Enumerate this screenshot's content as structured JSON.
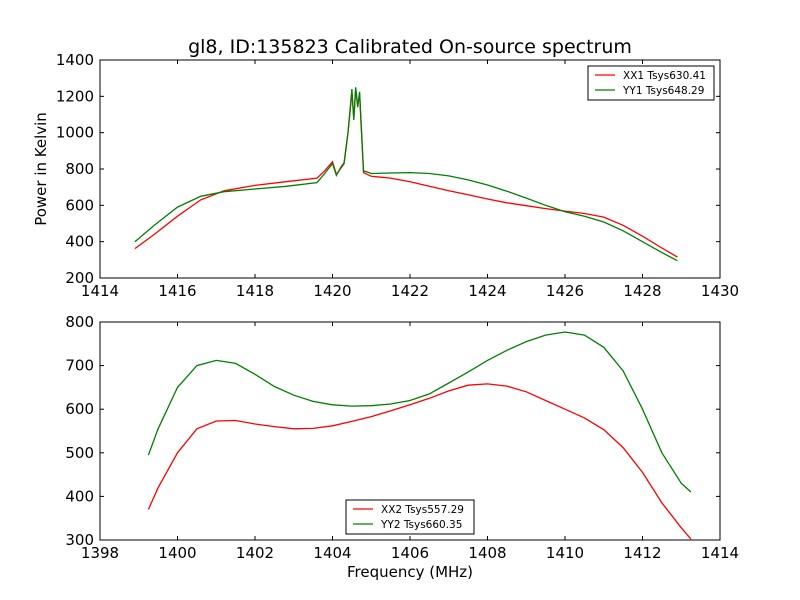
{
  "figure": {
    "title": "gl8, ID:135823 Calibrated On-source spectrum"
  },
  "chart_data": [
    {
      "type": "line",
      "title": "gl8, ID:135823 Calibrated On-source spectrum",
      "xlabel": "",
      "ylabel": "Power in Kelvin",
      "xlim": [
        1414,
        1430
      ],
      "ylim": [
        200,
        1400
      ],
      "xticks": [
        1414,
        1416,
        1418,
        1420,
        1422,
        1424,
        1426,
        1428,
        1430
      ],
      "yticks": [
        200,
        400,
        600,
        800,
        1000,
        1200,
        1400
      ],
      "grid": false,
      "legend_position": "top-right",
      "series": [
        {
          "name": "XX1 Tsys630.41",
          "color": "#ff0000",
          "x": [
            1414.9,
            1415.4,
            1416.0,
            1416.6,
            1417.2,
            1418.0,
            1418.8,
            1419.6,
            1419.8,
            1420.0,
            1420.1,
            1420.2,
            1420.3,
            1420.4,
            1420.5,
            1420.55,
            1420.6,
            1420.65,
            1420.7,
            1420.8,
            1421.0,
            1421.5,
            1422.0,
            1422.5,
            1423.0,
            1423.5,
            1424.0,
            1424.5,
            1425.0,
            1425.5,
            1426.0,
            1426.5,
            1427.0,
            1427.5,
            1428.0,
            1428.5,
            1428.9
          ],
          "values": [
            362,
            440,
            540,
            630,
            680,
            710,
            730,
            750,
            790,
            840,
            770,
            800,
            830,
            1000,
            1220,
            1080,
            1240,
            1150,
            1210,
            780,
            760,
            750,
            730,
            705,
            680,
            658,
            635,
            614,
            598,
            582,
            568,
            555,
            535,
            490,
            430,
            365,
            315
          ]
        },
        {
          "name": "YY1 Tsys648.29",
          "color": "#008000",
          "x": [
            1414.9,
            1415.4,
            1416.0,
            1416.6,
            1417.2,
            1418.0,
            1418.8,
            1419.6,
            1419.8,
            1420.0,
            1420.1,
            1420.2,
            1420.3,
            1420.4,
            1420.5,
            1420.55,
            1420.6,
            1420.65,
            1420.7,
            1420.8,
            1421.0,
            1421.5,
            1422.0,
            1422.5,
            1423.0,
            1423.5,
            1424.0,
            1424.5,
            1425.0,
            1425.5,
            1426.0,
            1426.5,
            1427.0,
            1427.5,
            1428.0,
            1428.5,
            1428.9
          ],
          "values": [
            400,
            490,
            590,
            650,
            675,
            690,
            705,
            725,
            775,
            830,
            765,
            805,
            835,
            1000,
            1240,
            1070,
            1250,
            1140,
            1225,
            790,
            775,
            778,
            780,
            775,
            762,
            740,
            712,
            678,
            640,
            600,
            565,
            540,
            508,
            460,
            400,
            340,
            295
          ]
        }
      ]
    },
    {
      "type": "line",
      "title": "",
      "xlabel": "Frequency (MHz)",
      "ylabel": "",
      "xlim": [
        1398,
        1414
      ],
      "ylim": [
        300,
        800
      ],
      "xticks": [
        1398,
        1400,
        1402,
        1404,
        1406,
        1408,
        1410,
        1412,
        1414
      ],
      "yticks": [
        300,
        400,
        500,
        600,
        700,
        800
      ],
      "grid": false,
      "legend_position": "bottom-center",
      "series": [
        {
          "name": "XX2 Tsys557.29",
          "color": "#ff0000",
          "x": [
            1399.25,
            1399.5,
            1400.0,
            1400.5,
            1401.0,
            1401.5,
            1402.0,
            1402.5,
            1403.0,
            1403.5,
            1404.0,
            1404.5,
            1405.0,
            1405.5,
            1406.0,
            1406.5,
            1407.0,
            1407.5,
            1408.0,
            1408.5,
            1409.0,
            1409.5,
            1410.0,
            1410.5,
            1411.0,
            1411.5,
            1412.0,
            1412.5,
            1413.0,
            1413.25
          ],
          "values": [
            370,
            420,
            500,
            555,
            573,
            574,
            566,
            560,
            555,
            556,
            562,
            572,
            583,
            596,
            610,
            625,
            642,
            655,
            658,
            653,
            640,
            620,
            600,
            580,
            553,
            512,
            455,
            385,
            328,
            302
          ]
        },
        {
          "name": "YY2 Tsys660.35",
          "color": "#008000",
          "x": [
            1399.25,
            1399.5,
            1400.0,
            1400.5,
            1401.0,
            1401.5,
            1402.0,
            1402.5,
            1403.0,
            1403.5,
            1404.0,
            1404.5,
            1405.0,
            1405.5,
            1406.0,
            1406.5,
            1407.0,
            1407.5,
            1408.0,
            1408.5,
            1409.0,
            1409.5,
            1410.0,
            1410.5,
            1411.0,
            1411.5,
            1412.0,
            1412.5,
            1413.0,
            1413.25
          ],
          "values": [
            495,
            555,
            650,
            700,
            712,
            705,
            680,
            652,
            632,
            618,
            610,
            607,
            608,
            612,
            620,
            635,
            660,
            685,
            712,
            735,
            755,
            770,
            777,
            770,
            742,
            688,
            600,
            500,
            430,
            410
          ]
        }
      ]
    }
  ]
}
